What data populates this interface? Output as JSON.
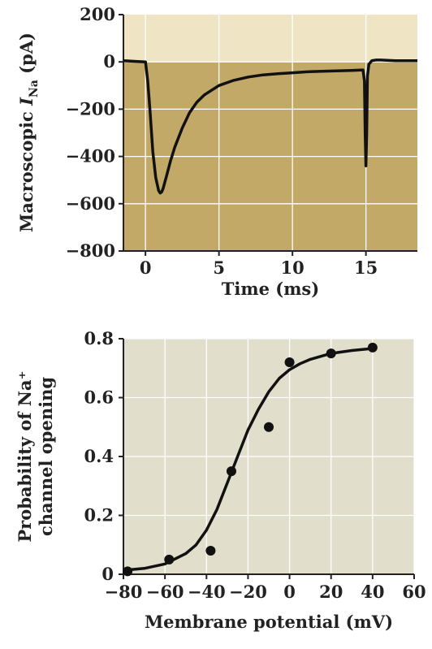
{
  "chart_data": [
    {
      "type": "line",
      "xlabel": "Time (ms)",
      "ylabel_main": "Macroscopic ",
      "ylabel_italic": "I",
      "ylabel_sub": "Na",
      "ylabel_unit": " (pA)",
      "xlim": [
        -1.5,
        18.5
      ],
      "ylim": [
        -800,
        200
      ],
      "xticks": [
        0,
        5,
        10,
        15
      ],
      "yticks": [
        200,
        0,
        -200,
        -400,
        -600,
        -800
      ],
      "ytick_labels": [
        "200",
        "0",
        "−200",
        "−400",
        "−600",
        "−800"
      ],
      "grid": true,
      "colors": {
        "background": "#c3a968",
        "positive_band": "#efe4c3",
        "line": "#111111",
        "grid": "#ffffff"
      },
      "series": [
        {
          "x": [
            -1.5,
            0.0,
            0.15,
            0.3,
            0.5,
            0.7,
            0.9,
            1.0,
            1.1,
            1.2,
            1.4,
            1.7,
            2.0,
            2.5,
            3.0,
            3.5,
            4.0,
            5.0,
            6.0,
            7.0,
            8.0,
            9.0,
            10.0,
            11.0,
            12.0,
            13.0,
            14.0,
            14.8,
            14.9,
            14.95,
            15.0,
            15.05,
            15.1,
            15.2,
            15.4,
            15.7,
            16.0,
            17.0,
            18.5
          ],
          "y": [
            5,
            0,
            -80,
            -200,
            -380,
            -490,
            -545,
            -555,
            -550,
            -535,
            -490,
            -420,
            -360,
            -280,
            -215,
            -170,
            -140,
            -100,
            -78,
            -64,
            -55,
            -50,
            -46,
            -42,
            -40,
            -38,
            -36,
            -34,
            -80,
            -300,
            -440,
            -300,
            -60,
            -10,
            5,
            8,
            8,
            5,
            5
          ]
        }
      ]
    },
    {
      "type": "scatter",
      "xlabel": "Membrane potential (mV)",
      "ylabel_line1": "Probability of Na⁺",
      "ylabel_line2": "channel opening",
      "xlim": [
        -80,
        60
      ],
      "ylim": [
        0,
        0.8
      ],
      "xticks": [
        -80,
        -60,
        -40,
        -20,
        0,
        20,
        40,
        60
      ],
      "xtick_labels": [
        "−80",
        "−60",
        "−40",
        "−20",
        "0",
        "20",
        "40",
        "60"
      ],
      "yticks": [
        0,
        0.2,
        0.4,
        0.6,
        0.8
      ],
      "ytick_labels": [
        "0",
        "0.2",
        "0.4",
        "0.6",
        "0.8"
      ],
      "grid": true,
      "colors": {
        "background": "#e1decb",
        "line": "#111111",
        "grid": "#ffffff",
        "points": "#111111"
      },
      "points": [
        {
          "x": -78,
          "y": 0.01
        },
        {
          "x": -58,
          "y": 0.05
        },
        {
          "x": -38,
          "y": 0.08
        },
        {
          "x": -28,
          "y": 0.35
        },
        {
          "x": -10,
          "y": 0.5
        },
        {
          "x": 0,
          "y": 0.72
        },
        {
          "x": 20,
          "y": 0.75
        },
        {
          "x": 40,
          "y": 0.77
        }
      ],
      "fit": {
        "x": [
          -78,
          -70,
          -60,
          -50,
          -45,
          -40,
          -35,
          -30,
          -25,
          -20,
          -15,
          -10,
          -5,
          0,
          5,
          10,
          20,
          30,
          40
        ],
        "y": [
          0.015,
          0.02,
          0.035,
          0.07,
          0.1,
          0.15,
          0.22,
          0.31,
          0.4,
          0.49,
          0.56,
          0.62,
          0.665,
          0.695,
          0.715,
          0.73,
          0.75,
          0.76,
          0.767
        ]
      }
    }
  ]
}
